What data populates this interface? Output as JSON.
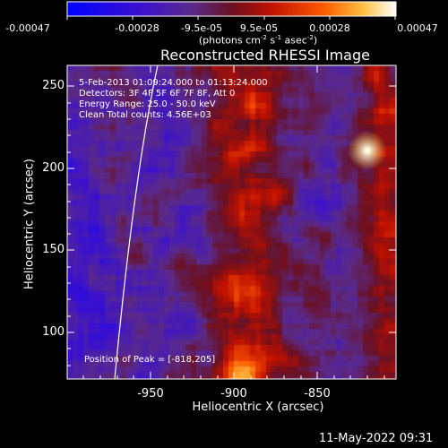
{
  "colorbar": {
    "ticks": [
      "-0.00047",
      "-0.00028",
      "-9.5e-05",
      "9.5e-05",
      "0.00028",
      "0.00047"
    ],
    "units_main": "(photons cm",
    "units_sup1": "-2",
    "units_mid": " s",
    "units_sup2": "-1",
    "units_mid2": " asec",
    "units_sup3": "-2",
    "units_end": ")"
  },
  "plot": {
    "title": "Reconstructed RHESSI Image",
    "annotations": {
      "time_range": "5-Feb-2013 01:09:24.000 to 01:13:24.000",
      "detectors": "Detectors: 3F 4F 5F 6F 7F 8F, Att 0",
      "energy": "Energy Range: 25.0 - 50.0 keV",
      "algorithm": "Clean    Total counts: 4.56E+03",
      "peak": "Position of Peak = [-818,205]"
    },
    "x_axis": {
      "label": "Heliocentric X (arcsec)",
      "ticks": [
        "-950",
        "-900",
        "-850"
      ],
      "tick_values": [
        -950,
        -900,
        -850
      ]
    },
    "y_axis": {
      "label": "Heliocentric Y (arcsec)",
      "ticks": [
        "250",
        "200",
        "150",
        "100"
      ],
      "tick_values": [
        250,
        200,
        150,
        100
      ]
    },
    "x_range": [
      -1000,
      -803
    ],
    "y_range": [
      70,
      262
    ]
  },
  "footer": {
    "date": "11-May-2022 09:31"
  },
  "colors": {
    "background": "#000000",
    "axis": "#ffffff",
    "limb": "#ffffff"
  }
}
